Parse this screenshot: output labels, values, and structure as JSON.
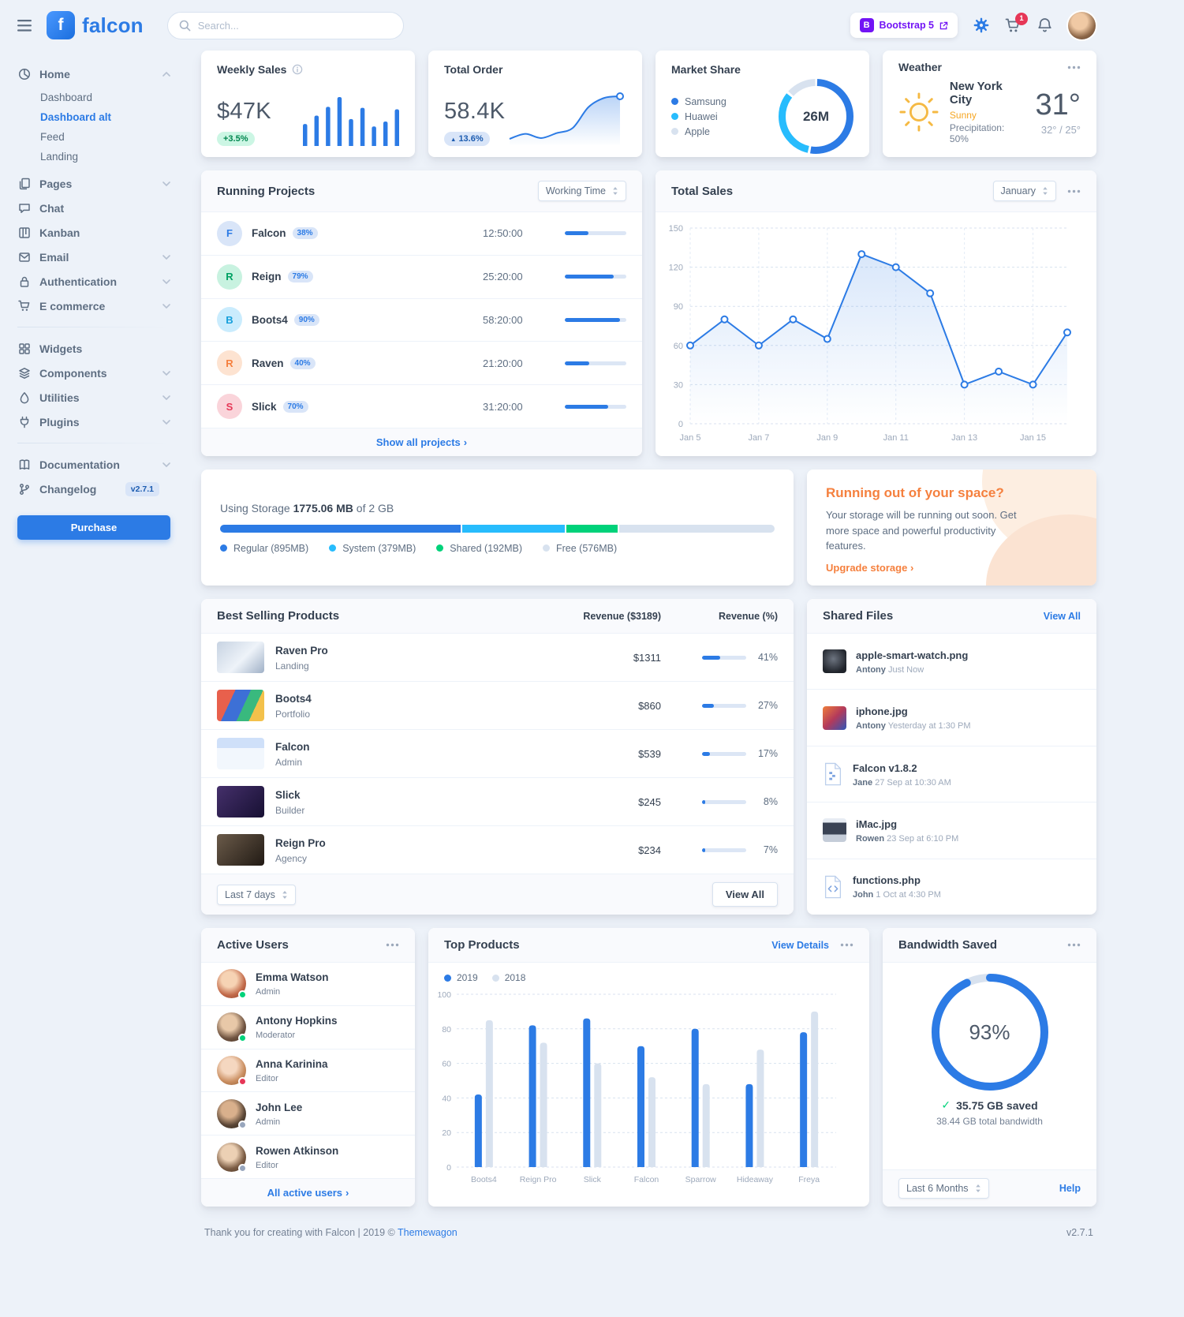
{
  "colors": {
    "primary": "#2c7be5",
    "info": "#27bcfd",
    "success": "#00d27a",
    "warning": "#f5803e",
    "danger": "#e63757",
    "body_background": "#edf2f9",
    "text_dark": "#344050",
    "text_muted": "#748194",
    "progress_track": "#d8e2ef",
    "bootstrap_purple": "#7214f5"
  },
  "icons": {
    "caret_up": "▲",
    "check": "✓",
    "angle_right": "›"
  },
  "topbar": {
    "logo_monogram": "f",
    "logo_text": "falcon",
    "search_placeholder": "Search...",
    "bootstrap_monogram": "B",
    "bootstrap_label": "Bootstrap 5",
    "cart_count": "1"
  },
  "sidebar": {
    "home": {
      "label": "Home",
      "children": [
        {
          "label": "Dashboard",
          "active": false
        },
        {
          "label": "Dashboard alt",
          "active": true
        },
        {
          "label": "Feed",
          "active": false
        },
        {
          "label": "Landing",
          "active": false
        }
      ]
    },
    "pages": "Pages",
    "chat": "Chat",
    "kanban": "Kanban",
    "email": "Email",
    "authentication": "Authentication",
    "ecommerce": "E commerce",
    "widgets": "Widgets",
    "components": "Components",
    "utilities": "Utilities",
    "plugins": "Plugins",
    "documentation": "Documentation",
    "changelog": "Changelog",
    "changelog_badge": "v2.7.1",
    "purchase_label": "Purchase"
  },
  "cards": {
    "weekly_sales": {
      "title": "Weekly Sales",
      "value": "$47K",
      "badge": "+3.5%",
      "chart": {
        "type": "bar",
        "color": "#2c7be5",
        "values": [
          45,
          62,
          80,
          100,
          55,
          78,
          40,
          50,
          75
        ]
      }
    },
    "total_order": {
      "title": "Total Order",
      "value": "58.4K",
      "badge": "13.6%",
      "chart": {
        "type": "area",
        "color": "#2c7be5",
        "values": [
          20,
          26,
          21,
          27,
          33,
          58,
          69,
          71
        ]
      }
    },
    "market_share": {
      "title": "Market Share",
      "center_value": "26M",
      "chart": {
        "type": "donut"
      },
      "legend": [
        {
          "label": "Samsung",
          "value": 53,
          "color": "#2c7be5"
        },
        {
          "label": "Huawei",
          "value": 33,
          "color": "#27bcfd"
        },
        {
          "label": "Apple",
          "value": 14,
          "color": "#d8e2ef"
        }
      ]
    },
    "weather": {
      "title": "Weather",
      "city": "New York City",
      "condition": "Sunny",
      "precipitation": "Precipitation: 50%",
      "temperature": "31°",
      "range": "32° / 25°"
    },
    "running_projects": {
      "title": "Running Projects",
      "select_value": "Working Time",
      "footer_link": "Show all projects",
      "rows": [
        {
          "initial": "F",
          "name": "Falcon",
          "pct": "38%",
          "time": "12:50:00",
          "progress": 38,
          "variant": "primary"
        },
        {
          "initial": "R",
          "name": "Reign",
          "pct": "79%",
          "time": "25:20:00",
          "progress": 79,
          "variant": "success"
        },
        {
          "initial": "B",
          "name": "Boots4",
          "pct": "90%",
          "time": "58:20:00",
          "progress": 90,
          "variant": "info"
        },
        {
          "initial": "R",
          "name": "Raven",
          "pct": "40%",
          "time": "21:20:00",
          "progress": 40,
          "variant": "warning"
        },
        {
          "initial": "S",
          "name": "Slick",
          "pct": "70%",
          "time": "31:20:00",
          "progress": 70,
          "variant": "danger"
        }
      ]
    },
    "total_sales": {
      "title": "Total Sales",
      "select_value": "January",
      "chart": {
        "type": "line",
        "x_labels": [
          "Jan 5",
          "Jan 7",
          "Jan 9",
          "Jan 11",
          "Jan 13",
          "Jan 15"
        ],
        "values": [
          60,
          80,
          60,
          80,
          65,
          130,
          120,
          100,
          30,
          40,
          30,
          70
        ],
        "y_ticks": [
          0,
          30,
          60,
          90,
          120,
          150
        ],
        "ylim": [
          0,
          150
        ]
      }
    },
    "storage": {
      "label_prefix": "Using Storage",
      "used": "1775.06 MB",
      "label_suffix": "of 2 GB",
      "segments": [
        {
          "label": "Regular (895MB)",
          "pct": 43.8,
          "color": "#2c7be5"
        },
        {
          "label": "System (379MB)",
          "pct": 18.6,
          "color": "#27bcfd"
        },
        {
          "label": "Shared (192MB)",
          "pct": 9.4,
          "color": "#00d27a"
        },
        {
          "label": "Free (576MB)",
          "pct": 28.2,
          "color": "#d8e2ef"
        }
      ]
    },
    "space_warning": {
      "title": "Running out of your space?",
      "body": "Your storage will be running out soon. Get more space and powerful productivity features.",
      "link": "Upgrade storage"
    },
    "best_selling": {
      "title": "Best Selling Products",
      "col_revenue": "Revenue ($3189)",
      "col_pct": "Revenue (%)",
      "select_value": "Last 7 days",
      "view_all": "View All",
      "rows": [
        {
          "name": "Raven Pro",
          "category": "Landing",
          "revenue": "$1311",
          "pct": 41,
          "pct_label": "41%",
          "thumb": "raven-pro"
        },
        {
          "name": "Boots4",
          "category": "Portfolio",
          "revenue": "$860",
          "pct": 27,
          "pct_label": "27%",
          "thumb": "boots4"
        },
        {
          "name": "Falcon",
          "category": "Admin",
          "revenue": "$539",
          "pct": 17,
          "pct_label": "17%",
          "thumb": "falcon"
        },
        {
          "name": "Slick",
          "category": "Builder",
          "revenue": "$245",
          "pct": 8,
          "pct_label": "8%",
          "thumb": "slick"
        },
        {
          "name": "Reign Pro",
          "category": "Agency",
          "revenue": "$234",
          "pct": 7,
          "pct_label": "7%",
          "thumb": "reign-pro"
        }
      ]
    },
    "shared_files": {
      "title": "Shared Files",
      "view_all": "View All",
      "files": [
        {
          "name": "apple-smart-watch.png",
          "author": "Antony",
          "time": "Just Now",
          "kind": "image-watch"
        },
        {
          "name": "iphone.jpg",
          "author": "Antony",
          "time": "Yesterday at 1:30 PM",
          "kind": "image-phone"
        },
        {
          "name": "Falcon v1.8.2",
          "author": "Jane",
          "time": "27 Sep at 10:30 AM",
          "kind": "file-zip"
        },
        {
          "name": "iMac.jpg",
          "author": "Rowen",
          "time": "23 Sep at 6:10 PM",
          "kind": "image-imac"
        },
        {
          "name": "functions.php",
          "author": "John",
          "time": "1 Oct at 4:30 PM",
          "kind": "file-code"
        }
      ]
    },
    "active_users": {
      "title": "Active Users",
      "footer_link": "All active users",
      "users": [
        {
          "name": "Emma Watson",
          "role": "Admin",
          "status": "online",
          "avatar": "u1"
        },
        {
          "name": "Antony Hopkins",
          "role": "Moderator",
          "status": "online",
          "avatar": "u2"
        },
        {
          "name": "Anna Karinina",
          "role": "Editor",
          "status": "busy",
          "avatar": "u3"
        },
        {
          "name": "John Lee",
          "role": "Admin",
          "status": "offline",
          "avatar": "u4"
        },
        {
          "name": "Rowen Atkinson",
          "role": "Editor",
          "status": "offline",
          "avatar": "u5"
        }
      ]
    },
    "top_products": {
      "title": "Top Products",
      "view_details": "View Details",
      "chart": {
        "type": "bar",
        "categories": [
          "Boots4",
          "Reign Pro",
          "Slick",
          "Falcon",
          "Sparrow",
          "Hideaway",
          "Freya"
        ],
        "series": [
          {
            "name": "2019",
            "color": "#2c7be5",
            "values": [
              42,
              82,
              86,
              70,
              80,
              48,
              78
            ]
          },
          {
            "name": "2018",
            "color": "#d8e2ef",
            "values": [
              85,
              72,
              60,
              52,
              48,
              68,
              90
            ]
          }
        ],
        "y_ticks": [
          0,
          20,
          40,
          60,
          80,
          100
        ],
        "ylim": [
          0,
          100
        ]
      }
    },
    "bandwidth": {
      "title": "Bandwidth Saved",
      "pct": 93,
      "pct_label": "93%",
      "saved": "35.75 GB saved",
      "total": "38.44 GB total bandwidth",
      "select_value": "Last 6 Months",
      "help": "Help"
    }
  },
  "footer": {
    "text": "Thank you for creating with Falcon | 2019 © ",
    "link": "Themewagon",
    "version": "v2.7.1"
  }
}
